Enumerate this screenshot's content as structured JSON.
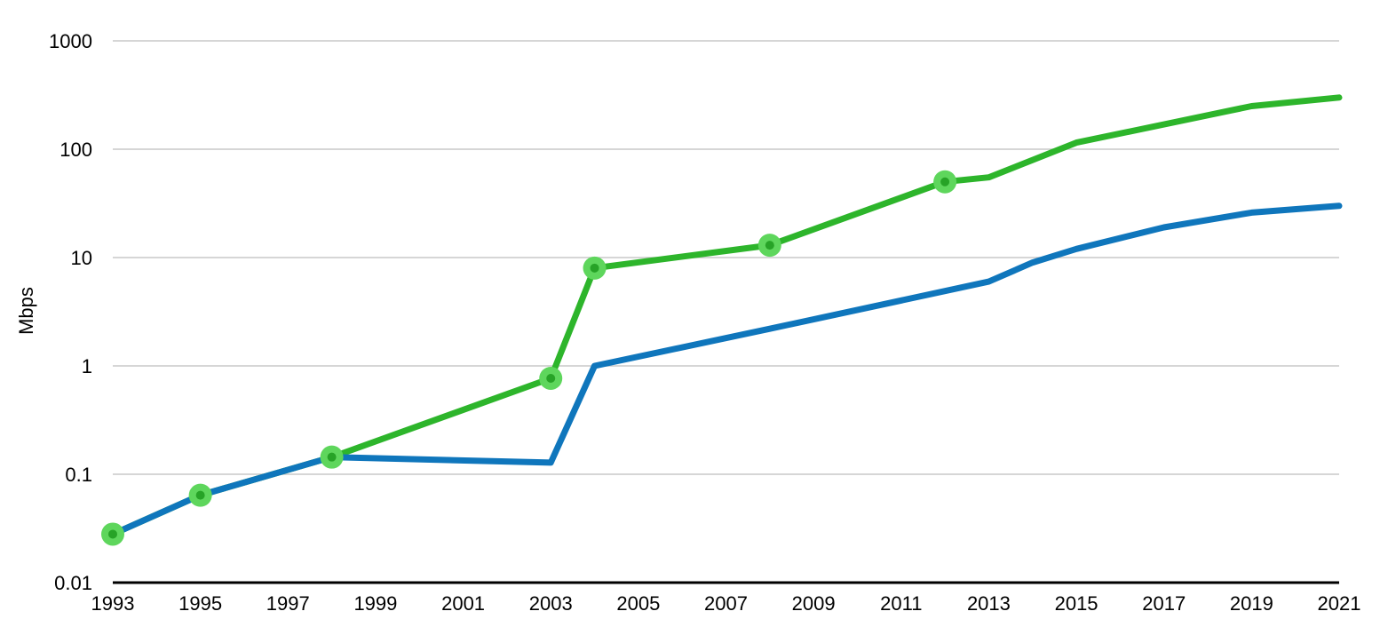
{
  "chart_data": {
    "type": "line",
    "title": "",
    "xlabel": "",
    "ylabel": "Mbps",
    "y_scale": "log",
    "ylim": [
      0.01,
      1000
    ],
    "xlim": [
      1993,
      2021
    ],
    "y_ticks": [
      "1000",
      "100",
      "10",
      "1",
      "0.1",
      "0.01"
    ],
    "x_ticks": [
      1993,
      1995,
      1997,
      1999,
      2001,
      2003,
      2005,
      2007,
      2009,
      2011,
      2013,
      2015,
      2017,
      2019,
      2021
    ],
    "grid": "horizontal",
    "legend": "none",
    "background": "#ffffff",
    "axis_color": "#000000",
    "gridline_color": "#c8c8c8",
    "tick_label_color": "#000000",
    "series": [
      {
        "name": "green-line-with-markers",
        "color": "#2db52b",
        "marker": {
          "outer_color": "#5ed65c",
          "inner_color": "#27a327",
          "outer_radius": 13,
          "inner_radius": 5
        },
        "marked_x": [
          1993,
          1995,
          1998,
          2003,
          2004,
          2008,
          2012
        ],
        "points": [
          [
            1993,
            0.028
          ],
          [
            1995,
            0.064
          ],
          [
            1998,
            0.144
          ],
          [
            2003,
            0.768
          ],
          [
            2004,
            8
          ],
          [
            2008,
            13
          ],
          [
            2012,
            50
          ],
          [
            2013,
            55
          ],
          [
            2015,
            115
          ],
          [
            2019,
            250
          ],
          [
            2021,
            300
          ]
        ]
      },
      {
        "name": "blue-line",
        "color": "#0f76bc",
        "marker": null,
        "marked_x": [],
        "points": [
          [
            1993,
            0.028
          ],
          [
            1995,
            0.064
          ],
          [
            1998,
            0.144
          ],
          [
            2003,
            0.128
          ],
          [
            2004,
            1
          ],
          [
            2008,
            2.2
          ],
          [
            2013,
            6
          ],
          [
            2014,
            9
          ],
          [
            2015,
            12
          ],
          [
            2017,
            19
          ],
          [
            2019,
            26
          ],
          [
            2021,
            30
          ]
        ]
      }
    ]
  }
}
